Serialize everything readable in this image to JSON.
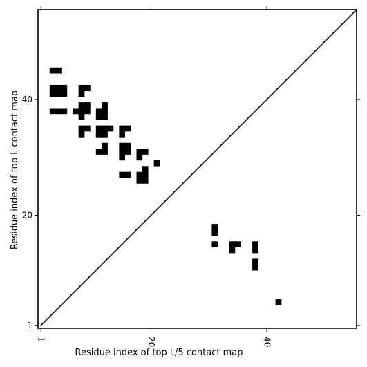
{
  "chart_data": {
    "type": "heatmap",
    "title": "",
    "xlabel": "Residue index of top L/5 contact map",
    "ylabel": "Residue index of top L contact map",
    "xlim": [
      0.5,
      55.5
    ],
    "ylim": [
      0.5,
      55.5
    ],
    "x_ticks": [
      1,
      20,
      40
    ],
    "y_ticks": [
      1,
      20,
      40
    ],
    "diagonal": true,
    "colors": {
      "contact": "#000000",
      "background": "#ffffff",
      "diagonal": "#000000"
    },
    "contacts": [
      {
        "x": 3,
        "y": 45
      },
      {
        "x": 4,
        "y": 45
      },
      {
        "x": 3,
        "y": 42
      },
      {
        "x": 4,
        "y": 42
      },
      {
        "x": 5,
        "y": 42
      },
      {
        "x": 3,
        "y": 41
      },
      {
        "x": 4,
        "y": 41
      },
      {
        "x": 5,
        "y": 41
      },
      {
        "x": 8,
        "y": 42
      },
      {
        "x": 9,
        "y": 42
      },
      {
        "x": 8,
        "y": 41
      },
      {
        "x": 3,
        "y": 38
      },
      {
        "x": 4,
        "y": 38
      },
      {
        "x": 5,
        "y": 38
      },
      {
        "x": 7,
        "y": 38
      },
      {
        "x": 8,
        "y": 38
      },
      {
        "x": 9,
        "y": 38
      },
      {
        "x": 8,
        "y": 39
      },
      {
        "x": 9,
        "y": 39
      },
      {
        "x": 8,
        "y": 37
      },
      {
        "x": 11,
        "y": 38
      },
      {
        "x": 12,
        "y": 38
      },
      {
        "x": 12,
        "y": 39
      },
      {
        "x": 11,
        "y": 37
      },
      {
        "x": 12,
        "y": 37
      },
      {
        "x": 8,
        "y": 35
      },
      {
        "x": 9,
        "y": 35
      },
      {
        "x": 8,
        "y": 34
      },
      {
        "x": 11,
        "y": 35
      },
      {
        "x": 12,
        "y": 35
      },
      {
        "x": 13,
        "y": 35
      },
      {
        "x": 11,
        "y": 34
      },
      {
        "x": 12,
        "y": 34
      },
      {
        "x": 15,
        "y": 35
      },
      {
        "x": 16,
        "y": 35
      },
      {
        "x": 15,
        "y": 34
      },
      {
        "x": 12,
        "y": 32
      },
      {
        "x": 11,
        "y": 31
      },
      {
        "x": 12,
        "y": 31
      },
      {
        "x": 15,
        "y": 32
      },
      {
        "x": 16,
        "y": 32
      },
      {
        "x": 15,
        "y": 31
      },
      {
        "x": 16,
        "y": 31
      },
      {
        "x": 15,
        "y": 30
      },
      {
        "x": 18,
        "y": 31
      },
      {
        "x": 19,
        "y": 31
      },
      {
        "x": 18,
        "y": 30
      },
      {
        "x": 21,
        "y": 29
      },
      {
        "x": 19,
        "y": 28
      },
      {
        "x": 15,
        "y": 27
      },
      {
        "x": 16,
        "y": 27
      },
      {
        "x": 18,
        "y": 27
      },
      {
        "x": 19,
        "y": 27
      },
      {
        "x": 18,
        "y": 26
      },
      {
        "x": 19,
        "y": 26
      },
      {
        "x": 31,
        "y": 18
      },
      {
        "x": 31,
        "y": 17
      },
      {
        "x": 31,
        "y": 15
      },
      {
        "x": 34,
        "y": 15
      },
      {
        "x": 35,
        "y": 15
      },
      {
        "x": 34,
        "y": 14
      },
      {
        "x": 38,
        "y": 15
      },
      {
        "x": 38,
        "y": 14
      },
      {
        "x": 38,
        "y": 12
      },
      {
        "x": 38,
        "y": 11
      },
      {
        "x": 42,
        "y": 5
      }
    ]
  }
}
